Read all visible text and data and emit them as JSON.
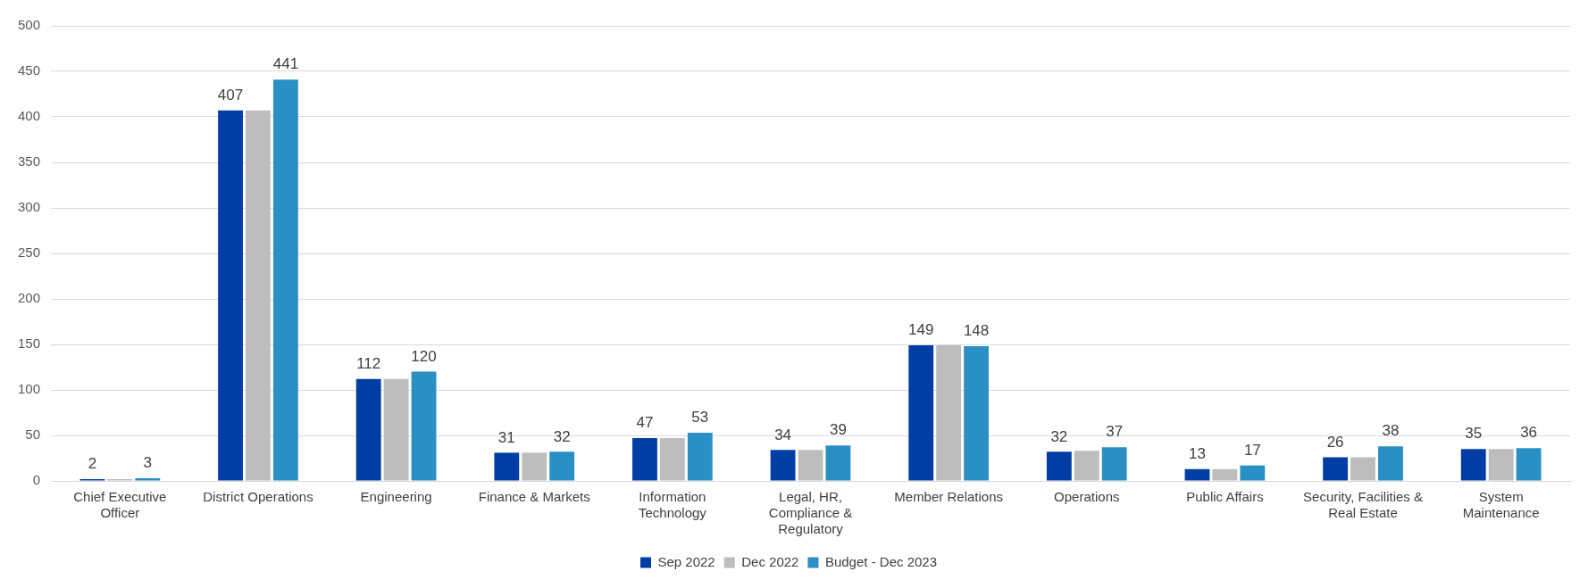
{
  "chart_data": {
    "type": "bar",
    "categories": [
      "Chief Executive Officer",
      "District Operations",
      "Engineering",
      "Finance & Markets",
      "Information Technology",
      "Legal, HR, Compliance & Regulatory",
      "Member Relations",
      "Operations",
      "Public Affairs",
      "Security, Facilities & Real Estate",
      "System Maintenance"
    ],
    "series": [
      {
        "name": "Sep 2022",
        "color": "#003da5",
        "values": [
          2,
          407,
          112,
          31,
          47,
          34,
          149,
          32,
          13,
          26,
          35
        ],
        "value_labels": [
          "2",
          "407",
          "112",
          "31",
          "47",
          "34",
          "149",
          "32",
          "13",
          "26",
          "35"
        ]
      },
      {
        "name": "Dec 2022",
        "color": "#bcbdbc",
        "values": [
          2,
          407,
          112,
          31,
          47,
          34,
          149,
          33,
          13,
          26,
          35
        ]
      },
      {
        "name": "Budget - Dec 2023",
        "color": "#2a8fc4",
        "values": [
          3,
          441,
          120,
          32,
          53,
          39,
          148,
          37,
          17,
          38,
          36
        ],
        "value_labels": [
          "3",
          "441",
          "120",
          "32",
          "53",
          "39",
          "148",
          "37",
          "17",
          "38",
          "36"
        ]
      }
    ],
    "ylim": [
      0,
      500
    ],
    "yticks": [
      0,
      50,
      100,
      150,
      200,
      250,
      300,
      350,
      400,
      450,
      500
    ],
    "grid": "y",
    "legend": "bottom"
  }
}
